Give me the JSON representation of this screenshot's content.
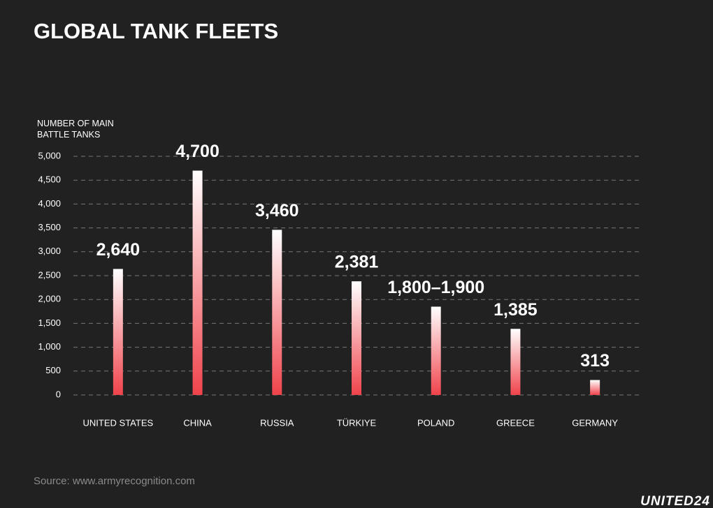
{
  "chart_data": {
    "type": "bar",
    "title": "GLOBAL TANK FLEETS",
    "y_label": "NUMBER OF MAIN BATTLE TANKS",
    "categories": [
      "UNITED STATES",
      "CHINA",
      "RUSSIA",
      "TÜRKIYE",
      "POLAND",
      "GREECE",
      "GERMANY"
    ],
    "values": [
      2640,
      4700,
      3460,
      2381,
      1850,
      1385,
      313
    ],
    "value_labels": [
      "2,640",
      "4,700",
      "3,460",
      "2,381",
      "1,800–1,900",
      "1,385",
      "313"
    ],
    "color": "#f0434b",
    "ylim": [
      0,
      5000
    ],
    "yticks": [
      0,
      500,
      {
        "value": 1000,
        "label": "1,000"
      },
      {
        "value": 1500,
        "label": "1,500"
      },
      {
        "value": 2000,
        "label": "2,000"
      },
      {
        "value": 2500,
        "label": "2,500"
      },
      {
        "value": 3000,
        "label": "3,000"
      },
      {
        "value": 3500,
        "label": "3,500"
      },
      {
        "value": 4000,
        "label": "4,000"
      },
      {
        "value": 4500,
        "label": "4,500"
      },
      {
        "value": 5000,
        "label": "5,000"
      }
    ],
    "grid": true,
    "source": "Source: www.armyrecognition.com",
    "brand": "UNITED24"
  }
}
